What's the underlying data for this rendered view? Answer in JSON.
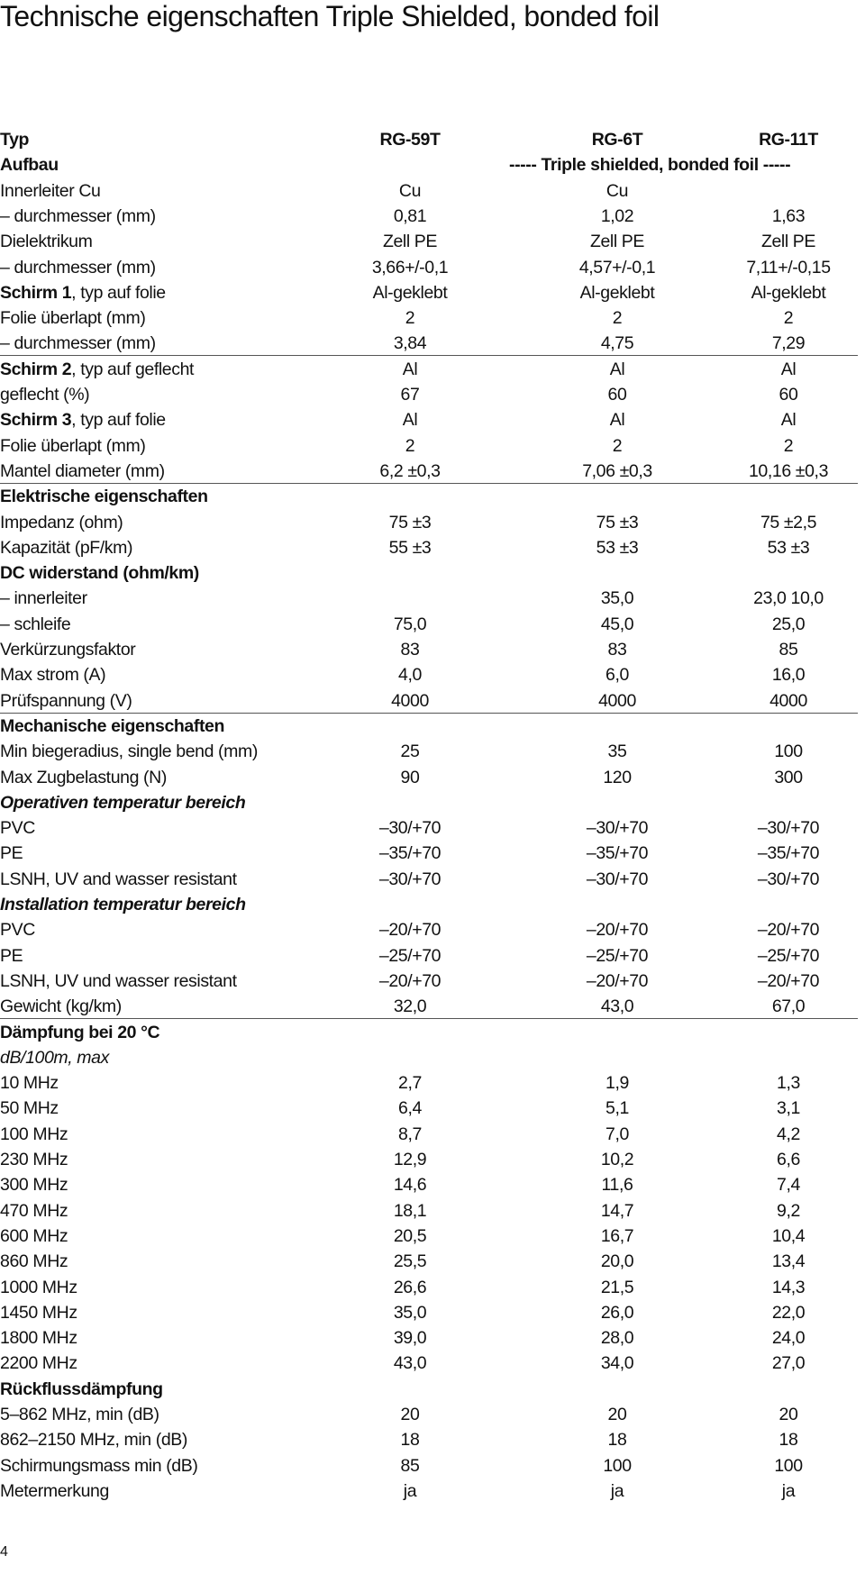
{
  "header": {
    "title": "Technische eigenschaften Triple Shielded, bonded foil"
  },
  "table": {
    "rows": [
      {
        "label": "Typ",
        "values": [
          "RG-59T",
          "RG-6T",
          "RG-11T"
        ],
        "style": "bold"
      },
      {
        "label": "Aufbau",
        "values": [
          null,
          "----- Triple shielded, bonded foil -----",
          null
        ],
        "style": "bold"
      },
      {
        "label": "Innerleiter Cu",
        "values": [
          "Cu",
          "Cu",
          null
        ]
      },
      {
        "label": "– durchmesser (mm)",
        "values": [
          "0,81",
          "1,02",
          "1,63"
        ]
      },
      {
        "label": "Dielektrikum",
        "values": [
          "Zell PE",
          "Zell PE",
          "Zell PE"
        ]
      },
      {
        "label": "– durchmesser (mm)",
        "values": [
          "3,66+/-0,1",
          "4,57+/-0,1",
          "7,11+/-0,15"
        ]
      },
      {
        "lead": "Schirm 1",
        "label": ", typ auf folie",
        "values": [
          "Al-geklebt",
          "Al-geklebt",
          "Al-geklebt"
        ]
      },
      {
        "label": "Folie überlapt (mm)",
        "values": [
          "2",
          "2",
          "2"
        ]
      },
      {
        "label": "– durchmesser (mm)",
        "values": [
          "3,84",
          "4,75",
          "7,29"
        ],
        "rule": true
      },
      {
        "lead": "Schirm 2",
        "label": ", typ auf geflecht",
        "values": [
          "Al",
          "Al",
          "Al"
        ]
      },
      {
        "label": "geflecht (%)",
        "values": [
          "67",
          "60",
          "60"
        ]
      },
      {
        "lead": "Schirm 3",
        "label": ", typ auf folie",
        "values": [
          "Al",
          "Al",
          "Al"
        ]
      },
      {
        "label": "Folie überlapt (mm)",
        "values": [
          "2",
          "2",
          "2"
        ]
      },
      {
        "label": "Mantel diameter (mm)",
        "values": [
          "6,2 ±0,3",
          "7,06 ±0,3",
          "10,16 ±0,3"
        ],
        "rule": true
      },
      {
        "label": "Elektrische eigenschaften",
        "style": "bold"
      },
      {
        "label": "Impedanz (ohm)",
        "values": [
          "75 ±3",
          "75 ±3",
          "75 ±2,5"
        ]
      },
      {
        "label": "Kapazität (pF/km)",
        "values": [
          "55 ±3",
          "53 ±3",
          "53 ±3"
        ]
      },
      {
        "label": "DC widerstand (ohm/km)",
        "style": "bold"
      },
      {
        "label": "– innerleiter",
        "values": [
          null,
          "35,0",
          "23,0 10,0"
        ]
      },
      {
        "label": "– schleife",
        "values": [
          "75,0",
          "45,0",
          "25,0"
        ]
      },
      {
        "label": "Verkürzungsfaktor",
        "values": [
          "83",
          "83",
          "85"
        ]
      },
      {
        "label": "Max strom (A)",
        "values": [
          "4,0",
          "6,0",
          "16,0"
        ]
      },
      {
        "label": "Prüfspannung (V)",
        "values": [
          "4000",
          "4000",
          "4000"
        ],
        "rule": true
      },
      {
        "label": "Mechanische eigenschaften",
        "style": "bold"
      },
      {
        "label": "Min biegeradius, single bend (mm)",
        "values": [
          "25",
          "35",
          "100"
        ]
      },
      {
        "label": "Max Zugbelastung (N)",
        "values": [
          "90",
          "120",
          "300"
        ]
      },
      {
        "label": "Operativen temperatur bereich",
        "style": "bolditalic"
      },
      {
        "label": "PVC",
        "values": [
          "–30/+70",
          "–30/+70",
          "–30/+70"
        ]
      },
      {
        "label": "PE",
        "values": [
          "–35/+70",
          "–35/+70",
          "–35/+70"
        ]
      },
      {
        "label": "LSNH, UV and wasser resistant",
        "values": [
          "–30/+70",
          "–30/+70",
          "–30/+70"
        ]
      },
      {
        "label": "Installation temperatur bereich",
        "style": "bolditalic"
      },
      {
        "label": "PVC",
        "values": [
          "–20/+70",
          "–20/+70",
          "–20/+70"
        ]
      },
      {
        "label": "PE",
        "values": [
          "–25/+70",
          "–25/+70",
          "–25/+70"
        ]
      },
      {
        "label": "LSNH, UV und wasser resistant",
        "values": [
          "–20/+70",
          "–20/+70",
          "–20/+70"
        ]
      },
      {
        "label": "Gewicht (kg/km)",
        "values": [
          "32,0",
          "43,0",
          "67,0"
        ],
        "rule": true
      },
      {
        "label": "Dämpfung bei 20 °C",
        "style": "bold"
      },
      {
        "label": "dB/100m, max",
        "style": "italic"
      },
      {
        "label": "10 MHz",
        "values": [
          "2,7",
          "1,9",
          "1,3"
        ]
      },
      {
        "label": "50 MHz",
        "values": [
          "6,4",
          "5,1",
          "3,1"
        ]
      },
      {
        "label": "100 MHz",
        "values": [
          "8,7",
          "7,0",
          "4,2"
        ]
      },
      {
        "label": "230 MHz",
        "values": [
          "12,9",
          "10,2",
          "6,6"
        ]
      },
      {
        "label": "300 MHz",
        "values": [
          "14,6",
          "11,6",
          "7,4"
        ]
      },
      {
        "label": "470 MHz",
        "values": [
          "18,1",
          "14,7",
          "9,2"
        ]
      },
      {
        "label": "600 MHz",
        "values": [
          "20,5",
          "16,7",
          "10,4"
        ]
      },
      {
        "label": "860 MHz",
        "values": [
          "25,5",
          "20,0",
          "13,4"
        ]
      },
      {
        "label": "1000 MHz",
        "values": [
          "26,6",
          "21,5",
          "14,3"
        ]
      },
      {
        "label": "1450 MHz",
        "values": [
          "35,0",
          "26,0",
          "22,0"
        ]
      },
      {
        "label": "1800 MHz",
        "values": [
          "39,0",
          "28,0",
          "24,0"
        ]
      },
      {
        "label": "2200 MHz",
        "values": [
          "43,0",
          "34,0",
          "27,0"
        ]
      },
      {
        "label": "Rückflussdämpfung",
        "style": "bold"
      },
      {
        "label": "5–862 MHz, min (dB)",
        "values": [
          "20",
          "20",
          "20"
        ]
      },
      {
        "label": "862–2150 MHz, min (dB)",
        "values": [
          "18",
          "18",
          "18"
        ]
      },
      {
        "label": "Schirmungsmass min (dB)",
        "values": [
          "85",
          "100",
          "100"
        ]
      },
      {
        "label": "Metermerkung",
        "values": [
          "ja",
          "ja",
          "ja"
        ]
      }
    ]
  },
  "footer": {
    "page": "4"
  }
}
